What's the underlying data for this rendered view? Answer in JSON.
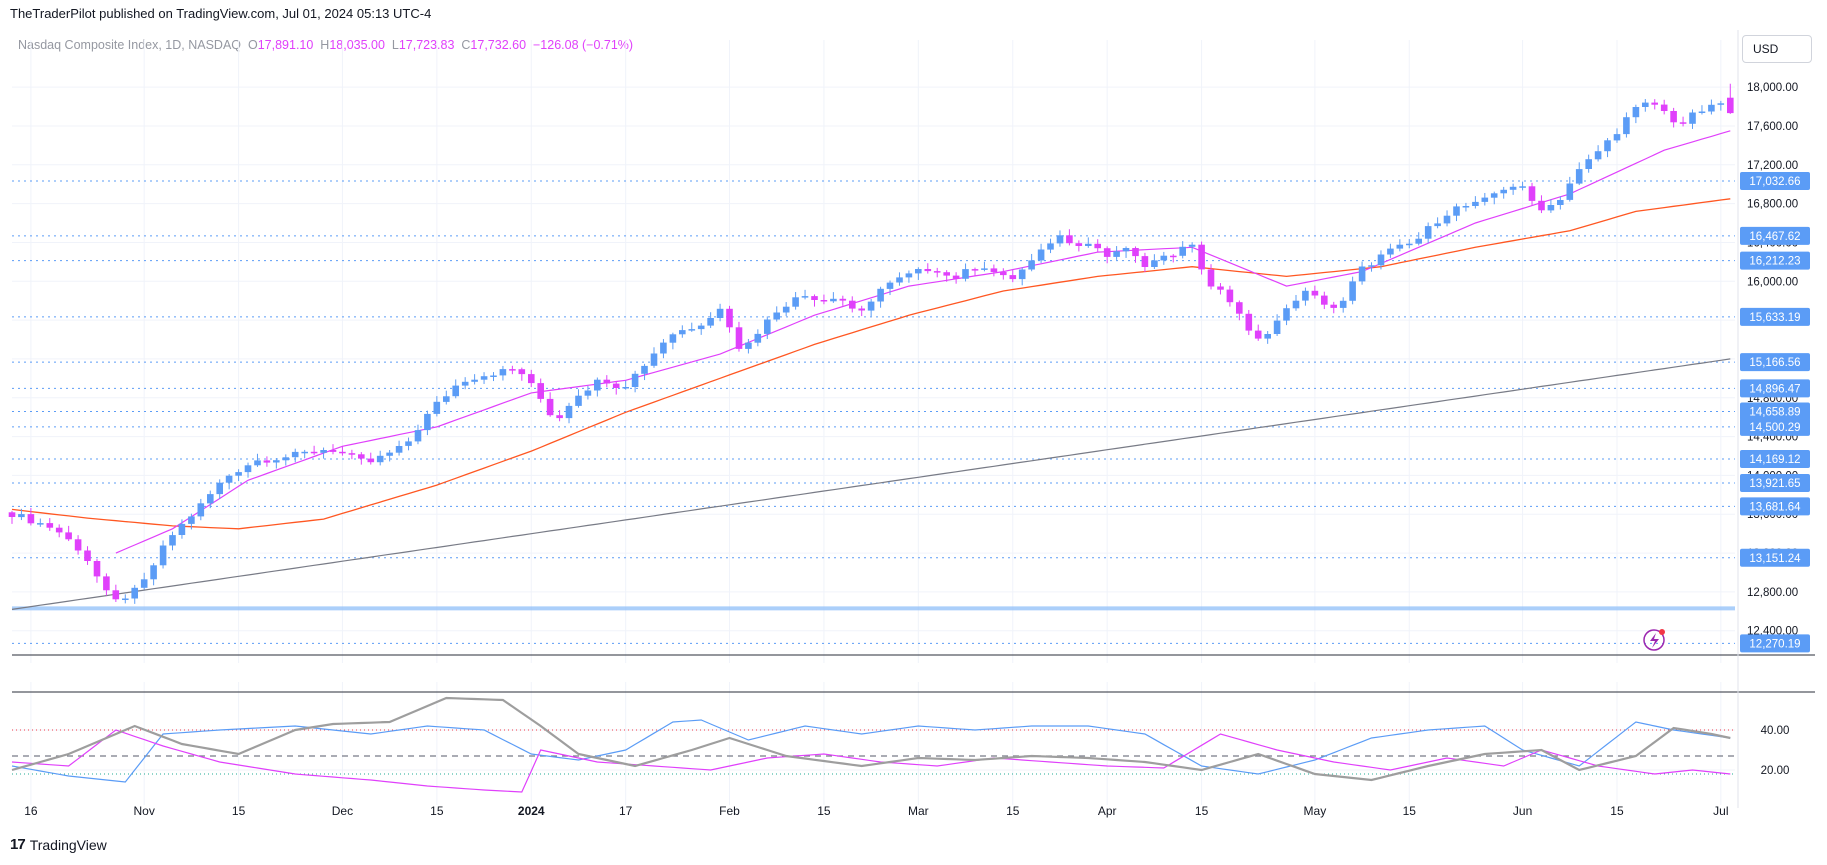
{
  "header": {
    "publisher_line": "TheTraderPilot published on TradingView.com, Jul 01, 2024 05:13 UTC-4"
  },
  "legend": {
    "symbol": "Nasdaq Composite Index, 1D, NASDAQ",
    "o_label": "O",
    "o_value": "17,891.10",
    "h_label": "H",
    "h_value": "18,035.00",
    "l_label": "L",
    "l_value": "17,723.83",
    "c_label": "C",
    "c_value": "17,732.60",
    "change": "−126.08 (−0.71%)"
  },
  "currency": "USD",
  "footer": {
    "brand": "TradingView"
  },
  "colors": {
    "up": "#5b9cf6",
    "down": "#e040fb",
    "ma_short": "#e040fb",
    "ma_mid": "#ff5722",
    "ma_long": "#787b86",
    "level_line": "#5b9cf6"
  },
  "chart_data": [
    {
      "type": "candlestick",
      "title": "",
      "ylim": [
        12150,
        18300
      ],
      "y_ticks": [
        12400,
        12800,
        13200,
        13600,
        14000,
        14400,
        14800,
        15200,
        15600,
        16000,
        16400,
        16800,
        17200,
        17600,
        18000
      ],
      "y_tick_labels": [
        "12,400.00",
        "12,800.00",
        "13,200.00",
        "13,600.00",
        "14,000.00",
        "14,400.00",
        "14,800.00",
        "15,200.00",
        "15,600.00",
        "16,000.00",
        "16,400.00",
        "16,800.00",
        "17,200.00",
        "17,600.00",
        "18,000.00"
      ],
      "x_ticks": [
        {
          "label": "16",
          "index": 2
        },
        {
          "label": "Nov",
          "index": 14
        },
        {
          "label": "15",
          "index": 24
        },
        {
          "label": "Dec",
          "index": 35
        },
        {
          "label": "15",
          "index": 45
        },
        {
          "label": "2024",
          "index": 55
        },
        {
          "label": "17",
          "index": 65
        },
        {
          "label": "Feb",
          "index": 76
        },
        {
          "label": "15",
          "index": 86
        },
        {
          "label": "Mar",
          "index": 96
        },
        {
          "label": "15",
          "index": 106
        },
        {
          "label": "Apr",
          "index": 116
        },
        {
          "label": "15",
          "index": 126
        },
        {
          "label": "May",
          "index": 138
        },
        {
          "label": "15",
          "index": 148
        },
        {
          "label": "Jun",
          "index": 160
        },
        {
          "label": "15",
          "index": 170
        },
        {
          "label": "Jul",
          "index": 181
        }
      ],
      "levels": [
        {
          "value": 17032.66,
          "label": "17,032.66"
        },
        {
          "value": 16467.62,
          "label": "16,467.62"
        },
        {
          "value": 16212.23,
          "label": "16,212.23"
        },
        {
          "value": 15633.19,
          "label": "15,633.19"
        },
        {
          "value": 15166.56,
          "label": "15,166.56"
        },
        {
          "value": 14896.47,
          "label": "14,896.47"
        },
        {
          "value": 14658.89,
          "label": "14,658.89"
        },
        {
          "value": 14500.29,
          "label": "14,500.29"
        },
        {
          "value": 14169.12,
          "label": "14,169.12"
        },
        {
          "value": 13921.65,
          "label": "13,921.65"
        },
        {
          "value": 13681.64,
          "label": "13,681.64"
        },
        {
          "value": 13151.24,
          "label": "13,151.24"
        },
        {
          "value": 12270.19,
          "label": "12,270.19"
        }
      ],
      "support_band": 12630,
      "keypoints": [
        [
          0,
          13620
        ],
        [
          5,
          13450
        ],
        [
          8,
          13200
        ],
        [
          11,
          12680
        ],
        [
          14,
          12840
        ],
        [
          17,
          13350
        ],
        [
          20,
          13650
        ],
        [
          23,
          13980
        ],
        [
          26,
          14150
        ],
        [
          30,
          14200
        ],
        [
          34,
          14280
        ],
        [
          38,
          14120
        ],
        [
          42,
          14300
        ],
        [
          45,
          14700
        ],
        [
          48,
          14980
        ],
        [
          51,
          15050
        ],
        [
          54,
          15100
        ],
        [
          56,
          14850
        ],
        [
          58,
          14550
        ],
        [
          60,
          14820
        ],
        [
          63,
          15000
        ],
        [
          65,
          14900
        ],
        [
          67,
          15100
        ],
        [
          70,
          15450
        ],
        [
          73,
          15550
        ],
        [
          76,
          15750
        ],
        [
          77,
          15250
        ],
        [
          79,
          15450
        ],
        [
          81,
          15650
        ],
        [
          84,
          15900
        ],
        [
          86,
          15780
        ],
        [
          88,
          15850
        ],
        [
          90,
          15620
        ],
        [
          92,
          15900
        ],
        [
          95,
          16050
        ],
        [
          98,
          16150
        ],
        [
          100,
          16020
        ],
        [
          103,
          16180
        ],
        [
          106,
          16000
        ],
        [
          109,
          16250
        ],
        [
          111,
          16480
        ],
        [
          113,
          16400
        ],
        [
          115,
          16380
        ],
        [
          117,
          16200
        ],
        [
          118,
          16400
        ],
        [
          120,
          16150
        ],
        [
          123,
          16250
        ],
        [
          125,
          16450
        ],
        [
          127,
          16000
        ],
        [
          130,
          15750
        ],
        [
          132,
          15350
        ],
        [
          135,
          15650
        ],
        [
          137,
          15900
        ],
        [
          139,
          15800
        ],
        [
          141,
          15700
        ],
        [
          143,
          16100
        ],
        [
          146,
          16300
        ],
        [
          149,
          16400
        ],
        [
          151,
          16600
        ],
        [
          153,
          16750
        ],
        [
          156,
          16800
        ],
        [
          158,
          16950
        ],
        [
          160,
          17000
        ],
        [
          162,
          16750
        ],
        [
          164,
          16800
        ],
        [
          166,
          17100
        ],
        [
          168,
          17300
        ],
        [
          170,
          17500
        ],
        [
          172,
          17750
        ],
        [
          174,
          17850
        ],
        [
          176,
          17700
        ],
        [
          177,
          17600
        ],
        [
          179,
          17750
        ],
        [
          181,
          17800
        ],
        [
          182,
          17890
        ]
      ],
      "last_candle": {
        "open": 17891.1,
        "high": 18035.0,
        "low": 17723.83,
        "close": 17732.6
      },
      "ma_short_keypoints": [
        [
          11,
          13200
        ],
        [
          17,
          13450
        ],
        [
          25,
          13950
        ],
        [
          35,
          14300
        ],
        [
          45,
          14500
        ],
        [
          55,
          14850
        ],
        [
          65,
          14980
        ],
        [
          75,
          15250
        ],
        [
          85,
          15650
        ],
        [
          95,
          15950
        ],
        [
          105,
          16100
        ],
        [
          115,
          16300
        ],
        [
          125,
          16350
        ],
        [
          135,
          15950
        ],
        [
          143,
          16100
        ],
        [
          155,
          16600
        ],
        [
          165,
          16900
        ],
        [
          175,
          17350
        ],
        [
          182,
          17550
        ]
      ],
      "ma_mid_keypoints": [
        [
          0,
          13650
        ],
        [
          8,
          13560
        ],
        [
          17,
          13480
        ],
        [
          24,
          13450
        ],
        [
          33,
          13550
        ],
        [
          45,
          13900
        ],
        [
          55,
          14250
        ],
        [
          65,
          14650
        ],
        [
          75,
          15000
        ],
        [
          85,
          15350
        ],
        [
          95,
          15650
        ],
        [
          105,
          15900
        ],
        [
          115,
          16050
        ],
        [
          125,
          16150
        ],
        [
          135,
          16050
        ],
        [
          145,
          16150
        ],
        [
          155,
          16350
        ],
        [
          165,
          16520
        ],
        [
          172,
          16720
        ],
        [
          182,
          16850
        ]
      ],
      "ma_long": {
        "start": 12620,
        "end": 15200
      }
    },
    {
      "type": "line",
      "title": "",
      "ylim": [
        5,
        60
      ],
      "y_ticks": [
        20,
        40
      ],
      "y_tick_labels": [
        "20.00",
        "40.00"
      ],
      "thresholds": [
        40,
        18
      ],
      "midline": 27,
      "series": [
        {
          "color": "#5b9cf6",
          "keypoints": [
            [
              0,
              22
            ],
            [
              6,
              17
            ],
            [
              12,
              14
            ],
            [
              16,
              38
            ],
            [
              22,
              40
            ],
            [
              30,
              42
            ],
            [
              38,
              38
            ],
            [
              44,
              42
            ],
            [
              50,
              40
            ],
            [
              55,
              28
            ],
            [
              60,
              25
            ],
            [
              65,
              30
            ],
            [
              70,
              44
            ],
            [
              73,
              45
            ],
            [
              78,
              35
            ],
            [
              84,
              42
            ],
            [
              90,
              38
            ],
            [
              96,
              42
            ],
            [
              102,
              40
            ],
            [
              108,
              42
            ],
            [
              114,
              42
            ],
            [
              120,
              38
            ],
            [
              126,
              22
            ],
            [
              132,
              18
            ],
            [
              138,
              25
            ],
            [
              144,
              36
            ],
            [
              150,
              40
            ],
            [
              156,
              42
            ],
            [
              160,
              30
            ],
            [
              166,
              22
            ],
            [
              172,
              44
            ],
            [
              176,
              40
            ],
            [
              182,
              36
            ]
          ]
        },
        {
          "color": "#e040fb",
          "keypoints": [
            [
              0,
              24
            ],
            [
              6,
              22
            ],
            [
              11,
              40
            ],
            [
              16,
              32
            ],
            [
              22,
              24
            ],
            [
              30,
              18
            ],
            [
              38,
              15
            ],
            [
              44,
              12
            ],
            [
              50,
              10
            ],
            [
              54,
              9
            ],
            [
              56,
              30
            ],
            [
              62,
              24
            ],
            [
              68,
              22
            ],
            [
              74,
              20
            ],
            [
              80,
              26
            ],
            [
              86,
              28
            ],
            [
              92,
              24
            ],
            [
              98,
              22
            ],
            [
              104,
              26
            ],
            [
              110,
              24
            ],
            [
              116,
              22
            ],
            [
              122,
              21
            ],
            [
              128,
              38
            ],
            [
              134,
              30
            ],
            [
              140,
              24
            ],
            [
              146,
              20
            ],
            [
              152,
              26
            ],
            [
              158,
              22
            ],
            [
              162,
              30
            ],
            [
              168,
              22
            ],
            [
              174,
              18
            ],
            [
              178,
              20
            ],
            [
              182,
              18
            ]
          ]
        },
        {
          "color": "#9e9e9e",
          "keypoints": [
            [
              0,
              20
            ],
            [
              6,
              28
            ],
            [
              13,
              42
            ],
            [
              18,
              33
            ],
            [
              24,
              28
            ],
            [
              30,
              40
            ],
            [
              34,
              43
            ],
            [
              40,
              44
            ],
            [
              46,
              56
            ],
            [
              52,
              55
            ],
            [
              56,
              42
            ],
            [
              60,
              28
            ],
            [
              66,
              22
            ],
            [
              72,
              30
            ],
            [
              76,
              36
            ],
            [
              82,
              27
            ],
            [
              90,
              22
            ],
            [
              96,
              26
            ],
            [
              102,
              25
            ],
            [
              108,
              27
            ],
            [
              114,
              26
            ],
            [
              120,
              24
            ],
            [
              126,
              20
            ],
            [
              132,
              28
            ],
            [
              138,
              18
            ],
            [
              144,
              15
            ],
            [
              150,
              22
            ],
            [
              156,
              28
            ],
            [
              162,
              30
            ],
            [
              166,
              20
            ],
            [
              172,
              27
            ],
            [
              176,
              41
            ],
            [
              180,
              38
            ],
            [
              182,
              36
            ]
          ]
        }
      ]
    }
  ]
}
